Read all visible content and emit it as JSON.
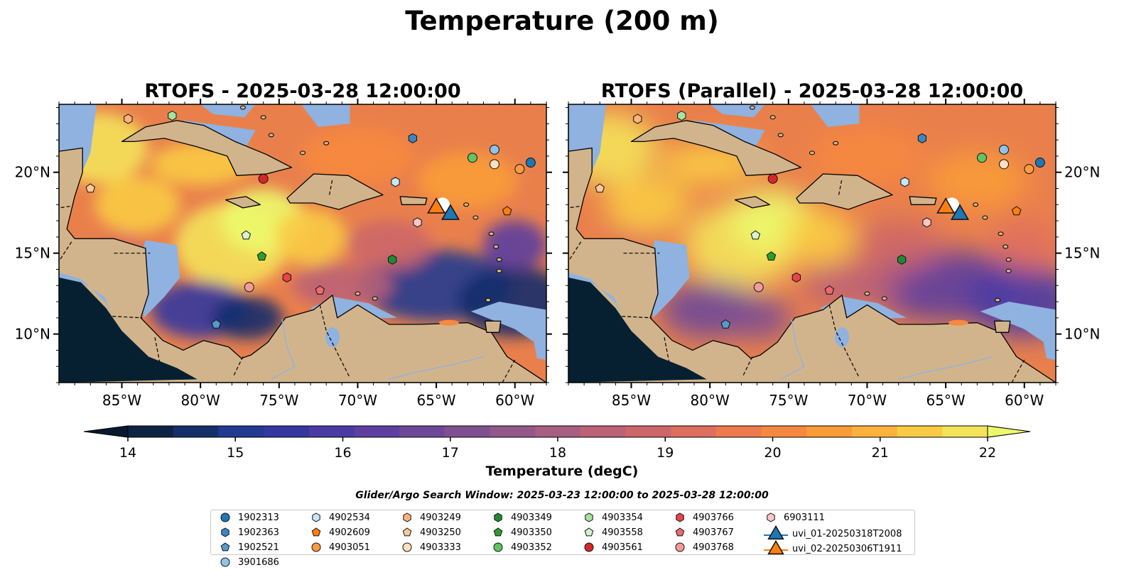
{
  "title": "Temperature (200 m)",
  "panels": [
    {
      "title": "RTOFS - 2025-03-28 12:00:00"
    },
    {
      "title": "RTOFS (Parallel) - 2025-03-28 12:00:00"
    }
  ],
  "map": {
    "lon_range": [
      -89,
      -58
    ],
    "lat_range": [
      7,
      24.2
    ],
    "lon_ticks": [
      "85°W",
      "80°W",
      "75°W",
      "70°W",
      "65°W",
      "60°W"
    ],
    "lon_tick_values": [
      -85,
      -80,
      -75,
      -70,
      -65,
      -60
    ],
    "lat_ticks": [
      "20°N",
      "15°N",
      "10°N"
    ],
    "lat_tick_values": [
      20,
      15,
      10
    ]
  },
  "colorbar": {
    "label": "Temperature (degC)",
    "min": 14,
    "max": 22,
    "ticks": [
      "14",
      "15",
      "16",
      "17",
      "18",
      "19",
      "20",
      "21",
      "22"
    ],
    "colors": [
      "#0d2344",
      "#142f6a",
      "#223a8f",
      "#34379f",
      "#4a3aa4",
      "#5c3f9f",
      "#6d4898",
      "#7f5090",
      "#925889",
      "#a75e80",
      "#bb6276",
      "#cc6668",
      "#de6e5e",
      "#ed7a4c",
      "#f7883f",
      "#fa9b38",
      "#fbb23c",
      "#f9cb44",
      "#f4e25a"
    ],
    "over_color": "#ecf96b",
    "under_color": "#06192d"
  },
  "search_window": "Glider/Argo Search Window: 2025-03-23 12:00:00 to 2025-03-28 12:00:00",
  "colors": {
    "land": "#d2b48c",
    "shelf": "#8fb2e0",
    "deep": "#062031"
  },
  "legend": [
    {
      "label": "1902313",
      "marker": "circle",
      "color": "#1f77b4"
    },
    {
      "label": "1902363",
      "marker": "hexagon",
      "color": "#3a87c4"
    },
    {
      "label": "1902521",
      "marker": "pentagon",
      "color": "#5599cf"
    },
    {
      "label": "3901686",
      "marker": "circle",
      "color": "#8fc4ea"
    },
    {
      "label": "4902534",
      "marker": "hexagon",
      "color": "#c7e6f7"
    },
    {
      "label": "4902609",
      "marker": "pentagon",
      "color": "#ff7f0e"
    },
    {
      "label": "4903051",
      "marker": "circle",
      "color": "#ff9b40"
    },
    {
      "label": "4903249",
      "marker": "hexagon",
      "color": "#ffb27a"
    },
    {
      "label": "4903250",
      "marker": "pentagon",
      "color": "#ffc898"
    },
    {
      "label": "4903333",
      "marker": "circle",
      "color": "#ffe0c0"
    },
    {
      "label": "4903349",
      "marker": "hexagon",
      "color": "#1f8a32"
    },
    {
      "label": "4903350",
      "marker": "pentagon",
      "color": "#2ca02c"
    },
    {
      "label": "4903352",
      "marker": "circle",
      "color": "#62c462"
    },
    {
      "label": "4903354",
      "marker": "hexagon",
      "color": "#a6e3a0"
    },
    {
      "label": "4903558",
      "marker": "pentagon",
      "color": "#d6f2cf"
    },
    {
      "label": "4903561",
      "marker": "circle",
      "color": "#d62728"
    },
    {
      "label": "4903766",
      "marker": "hexagon",
      "color": "#e84449"
    },
    {
      "label": "4903767",
      "marker": "pentagon",
      "color": "#ec6a6f"
    },
    {
      "label": "4903768",
      "marker": "circle",
      "color": "#f39a9a"
    },
    {
      "label": "6903111",
      "marker": "hexagon",
      "color": "#f9c7c7"
    },
    {
      "label": "uvi_01-20250318T2008",
      "marker": "triangle",
      "color": "#1f77b4"
    },
    {
      "label": "uvi_02-20250306T1911",
      "marker": "triangle",
      "color": "#ff7f0e"
    }
  ],
  "argo_positions": [
    {
      "id": "1902313",
      "lon": -59.0,
      "lat": 20.6
    },
    {
      "id": "1902363",
      "lon": -66.5,
      "lat": 22.1
    },
    {
      "id": "1902521",
      "lon": -79.0,
      "lat": 10.6
    },
    {
      "id": "3901686",
      "lon": -61.3,
      "lat": 21.4
    },
    {
      "id": "4902534",
      "lon": -67.6,
      "lat": 19.4
    },
    {
      "id": "4902609",
      "lon": -60.5,
      "lat": 17.6
    },
    {
      "id": "4903051",
      "lon": -59.7,
      "lat": 20.2
    },
    {
      "id": "4903249",
      "lon": -84.6,
      "lat": 23.3
    },
    {
      "id": "4903250",
      "lon": -87.0,
      "lat": 19.0
    },
    {
      "id": "4903333",
      "lon": -61.3,
      "lat": 20.5
    },
    {
      "id": "4903349",
      "lon": -67.8,
      "lat": 14.6
    },
    {
      "id": "4903350",
      "lon": -76.1,
      "lat": 14.8
    },
    {
      "id": "4903352",
      "lon": -62.7,
      "lat": 20.9
    },
    {
      "id": "4903354",
      "lon": -81.8,
      "lat": 23.5
    },
    {
      "id": "4903558",
      "lon": -77.1,
      "lat": 16.1
    },
    {
      "id": "4903561",
      "lon": -76.0,
      "lat": 19.6
    },
    {
      "id": "4903766",
      "lon": -74.5,
      "lat": 13.5
    },
    {
      "id": "4903767",
      "lon": -72.4,
      "lat": 12.7
    },
    {
      "id": "4903768",
      "lon": -76.9,
      "lat": 12.9
    },
    {
      "id": "6903111",
      "lon": -66.2,
      "lat": 16.9
    }
  ],
  "glider_positions": [
    {
      "id": "uvi_01-20250318T2008",
      "lon": -64.1,
      "lat": 17.5
    },
    {
      "id": "uvi_02-20250306T1911",
      "lon": -65.0,
      "lat": 17.9
    }
  ]
}
